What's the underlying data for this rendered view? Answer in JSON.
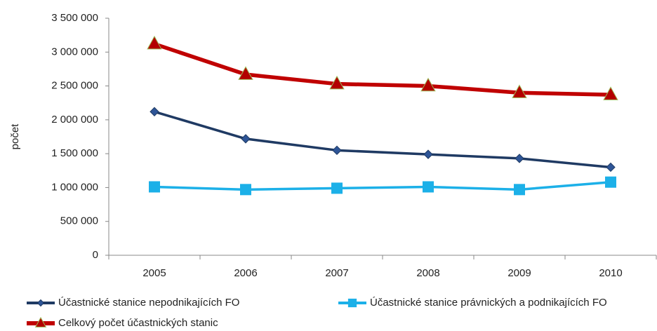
{
  "chart_data": {
    "type": "line",
    "y_label": "počet",
    "categories": [
      "2005",
      "2006",
      "2007",
      "2008",
      "2009",
      "2010"
    ],
    "series": [
      {
        "name": "Účastnické stanice nepodnikajících FO",
        "color": "#1f3a63",
        "marker": "diamond",
        "marker_color": "#2e5597",
        "values": [
          2120000,
          1720000,
          1550000,
          1490000,
          1430000,
          1300000
        ]
      },
      {
        "name": "Účastnické stanice právnických a podnikajících FO",
        "color": "#1cb0e8",
        "marker": "square",
        "marker_color": "#1cb0e8",
        "values": [
          1010000,
          970000,
          990000,
          1010000,
          970000,
          1080000
        ]
      },
      {
        "name": "Celkový počet účastnických stanic",
        "color": "#c00000",
        "marker": "triangle",
        "marker_color": "#b30000",
        "marker_edge": "#9bbb59",
        "values": [
          3120000,
          2670000,
          2530000,
          2500000,
          2400000,
          2370000
        ]
      }
    ],
    "ylim": [
      0,
      3500000
    ],
    "yticks": [
      0,
      {
        "value": 500000,
        "label": "500 000"
      },
      {
        "value": 1000000,
        "label": "1 000 000"
      },
      {
        "value": 1500000,
        "label": "1 500 000"
      },
      {
        "value": 2000000,
        "label": "2 000 000"
      },
      {
        "value": 2500000,
        "label": "2 500 000"
      },
      {
        "value": 3000000,
        "label": "3 000 000"
      },
      {
        "value": 3500000,
        "label": "3 500 000"
      }
    ],
    "grid": false
  }
}
